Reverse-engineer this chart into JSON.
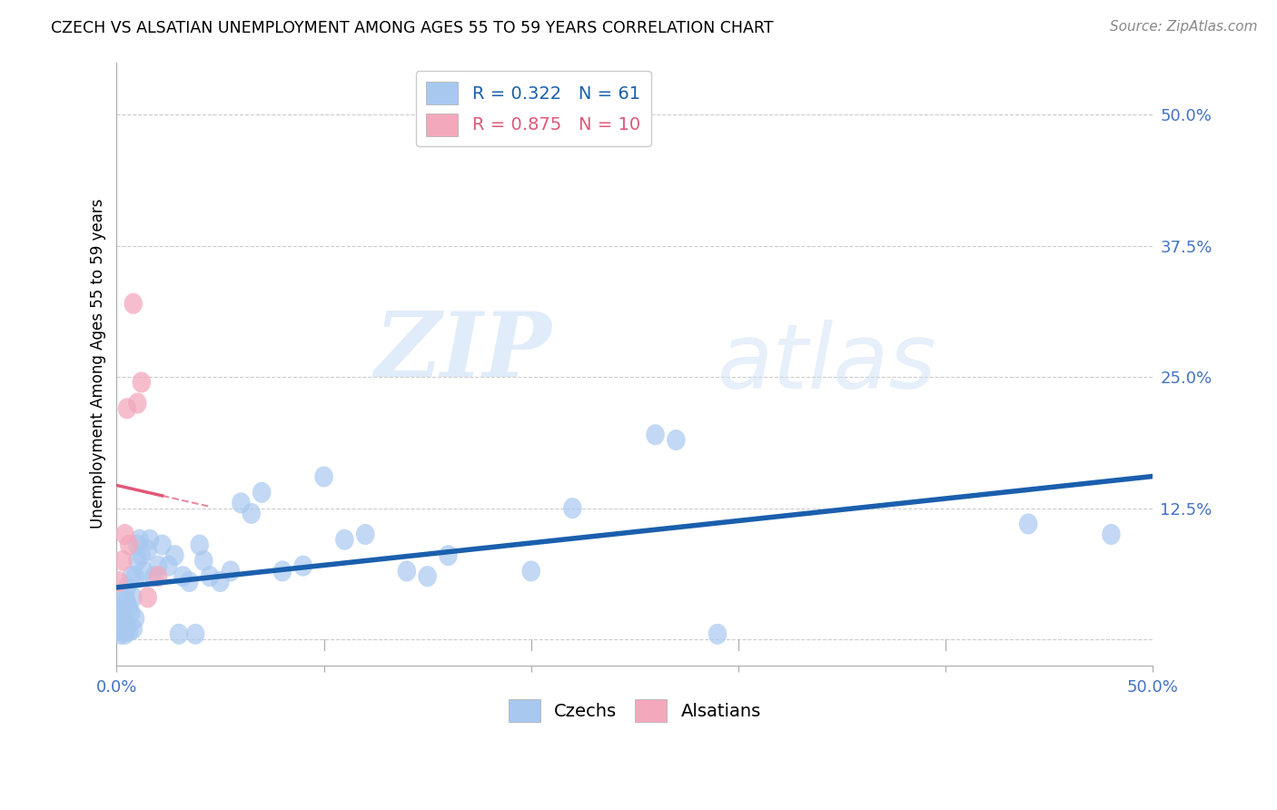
{
  "title": "CZECH VS ALSATIAN UNEMPLOYMENT AMONG AGES 55 TO 59 YEARS CORRELATION CHART",
  "source": "Source: ZipAtlas.com",
  "ylabel": "Unemployment Among Ages 55 to 59 years",
  "xlim": [
    0.0,
    0.5
  ],
  "ylim": [
    -0.025,
    0.55
  ],
  "yticks": [
    0.0,
    0.125,
    0.25,
    0.375,
    0.5
  ],
  "ytick_labels": [
    "",
    "12.5%",
    "25.0%",
    "37.5%",
    "50.0%"
  ],
  "xticks": [
    0.0,
    0.1,
    0.2,
    0.3,
    0.4,
    0.5
  ],
  "xtick_labels": [
    "0.0%",
    "",
    "",
    "",
    "",
    "50.0%"
  ],
  "czech_color": "#A8C8F0",
  "alsatian_color": "#F4A8BC",
  "czech_line_color": "#1A5FAD",
  "alsatian_line_color": "#E05878",
  "legend_r_czech": "R = 0.322",
  "legend_n_czech": "N = 61",
  "legend_r_alsatian": "R = 0.875",
  "legend_n_alsatian": "N = 10",
  "watermark_zip": "ZIP",
  "watermark_atlas": "atlas",
  "czech_x": [
    0.001,
    0.001,
    0.002,
    0.002,
    0.002,
    0.003,
    0.003,
    0.003,
    0.004,
    0.004,
    0.004,
    0.005,
    0.005,
    0.005,
    0.006,
    0.006,
    0.007,
    0.007,
    0.008,
    0.008,
    0.009,
    0.009,
    0.01,
    0.01,
    0.011,
    0.012,
    0.013,
    0.015,
    0.016,
    0.018,
    0.02,
    0.022,
    0.025,
    0.028,
    0.03,
    0.032,
    0.035,
    0.038,
    0.04,
    0.042,
    0.045,
    0.05,
    0.055,
    0.06,
    0.065,
    0.07,
    0.08,
    0.09,
    0.1,
    0.11,
    0.12,
    0.14,
    0.15,
    0.16,
    0.2,
    0.22,
    0.26,
    0.27,
    0.29,
    0.44,
    0.48
  ],
  "czech_y": [
    0.03,
    0.02,
    0.025,
    0.01,
    0.005,
    0.02,
    0.01,
    0.035,
    0.015,
    0.005,
    0.04,
    0.012,
    0.035,
    0.05,
    0.008,
    0.03,
    0.025,
    0.06,
    0.01,
    0.04,
    0.02,
    0.06,
    0.075,
    0.09,
    0.095,
    0.08,
    0.065,
    0.085,
    0.095,
    0.06,
    0.07,
    0.09,
    0.07,
    0.08,
    0.005,
    0.06,
    0.055,
    0.005,
    0.09,
    0.075,
    0.06,
    0.055,
    0.065,
    0.13,
    0.12,
    0.14,
    0.065,
    0.07,
    0.155,
    0.095,
    0.1,
    0.065,
    0.06,
    0.08,
    0.065,
    0.125,
    0.195,
    0.19,
    0.005,
    0.11,
    0.1
  ],
  "alsatian_x": [
    0.001,
    0.003,
    0.004,
    0.005,
    0.006,
    0.008,
    0.01,
    0.012,
    0.015,
    0.02
  ],
  "alsatian_y": [
    0.055,
    0.075,
    0.1,
    0.22,
    0.09,
    0.32,
    0.225,
    0.245,
    0.04,
    0.06
  ]
}
